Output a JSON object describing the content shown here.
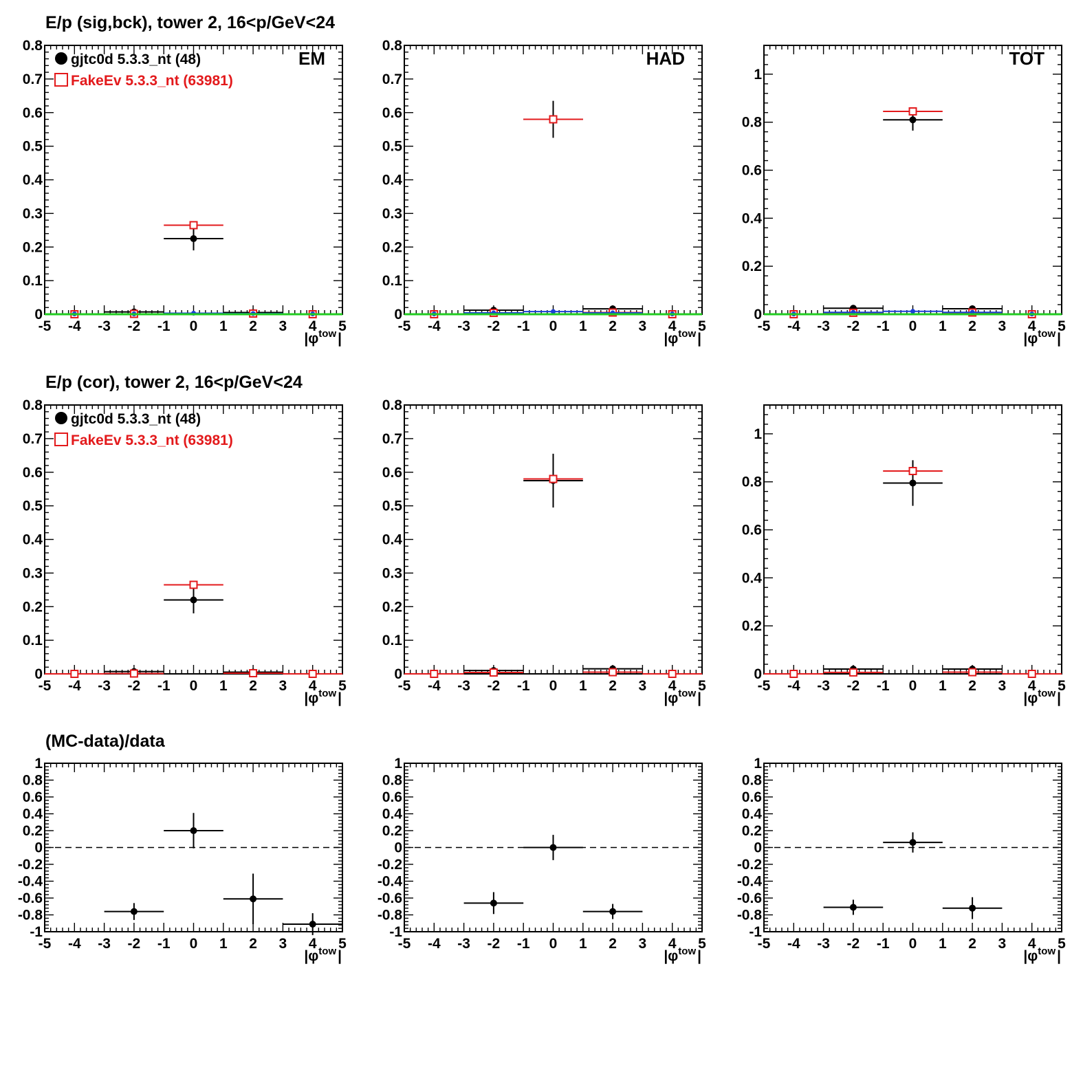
{
  "rows": [
    {
      "title": "E/p (sig,bck), tower 2, 16<p/GeV<24"
    },
    {
      "title": "E/p (cor), tower 2, 16<p/GeV<24"
    },
    {
      "title": "(MC-data)/data"
    }
  ],
  "legend": {
    "data_label": "gjtc0d 5.3.3_nt (48)",
    "mc_label": "FakeEv 5.3.3_nt (63981)"
  },
  "colors": {
    "data": "#000000",
    "mc": "#e31a1c",
    "blue": "#1a3fd6",
    "green": "#22cc22",
    "axis": "#000000"
  },
  "x_axis": {
    "label": "|φ_tow|",
    "range": [
      -5,
      5
    ],
    "ticks": [
      -5,
      -4,
      -3,
      -2,
      -1,
      0,
      1,
      2,
      3,
      4,
      5
    ],
    "tick_labels": [
      "-5",
      "-4",
      "-3",
      "-2",
      "-1",
      "0",
      "1",
      "2",
      "3",
      "4",
      "5"
    ]
  },
  "chart_data": [
    {
      "type": "scatter",
      "row": 0,
      "col": 0,
      "corner_label": "EM",
      "legend": true,
      "ylim": [
        0,
        0.8
      ],
      "yticks": [
        0,
        0.1,
        0.2,
        0.3,
        0.4,
        0.5,
        0.6,
        0.7,
        0.8
      ],
      "ytick_labels": [
        "0",
        "0.1",
        "0.2",
        "0.3",
        "0.4",
        "0.5",
        "0.6",
        "0.7",
        "0.8"
      ],
      "series": [
        {
          "name": "gjtc0d 5.3.3_nt (48)",
          "color": "#000000",
          "marker": "dot",
          "points": [
            {
              "x": -4,
              "y": 0,
              "err": 0
            },
            {
              "x": -2,
              "y": 0.007,
              "err": 0.003
            },
            {
              "x": 0,
              "y": 0.225,
              "err": 0.035
            },
            {
              "x": 2,
              "y": 0.005,
              "err": 0.003
            },
            {
              "x": 4,
              "y": 0,
              "err": 0
            }
          ]
        },
        {
          "name": "FakeEv 5.3.3_nt (63981)",
          "color": "#e31a1c",
          "marker": "open-square",
          "points": [
            {
              "x": -4,
              "y": 0,
              "err": 0
            },
            {
              "x": -2,
              "y": 0.001,
              "err": 0
            },
            {
              "x": 0,
              "y": 0.265,
              "err": 0
            },
            {
              "x": 2,
              "y": 0.002,
              "err": 0
            },
            {
              "x": 4,
              "y": 0,
              "err": 0
            }
          ]
        },
        {
          "color": "#1a3fd6",
          "marker": "small-dot",
          "points": [
            {
              "x": -4,
              "y": 0.001
            },
            {
              "x": -2,
              "y": 0.001
            },
            {
              "x": 0,
              "y": 0.003
            },
            {
              "x": 2,
              "y": 0.002
            },
            {
              "x": 4,
              "y": 0.001
            }
          ]
        },
        {
          "color": "#22cc22",
          "marker": "line",
          "points": [
            {
              "x": -4,
              "y": 0
            },
            {
              "x": -2,
              "y": 0
            },
            {
              "x": 0,
              "y": 0
            },
            {
              "x": 2,
              "y": 0
            },
            {
              "x": 4,
              "y": 0
            }
          ]
        }
      ]
    },
    {
      "type": "scatter",
      "row": 0,
      "col": 1,
      "corner_label": "HAD",
      "legend": false,
      "ylim": [
        0,
        0.8
      ],
      "yticks": [
        0,
        0.1,
        0.2,
        0.3,
        0.4,
        0.5,
        0.6,
        0.7,
        0.8
      ],
      "ytick_labels": [
        "0",
        "0.1",
        "0.2",
        "0.3",
        "0.4",
        "0.5",
        "0.6",
        "0.7",
        "0.8"
      ],
      "series": [
        {
          "name": "gjtc0d 5.3.3_nt (48)",
          "color": "#000000",
          "marker": "dot",
          "points": [
            {
              "x": -4,
              "y": 0,
              "err": 0
            },
            {
              "x": -2,
              "y": 0.012,
              "err": 0.004
            },
            {
              "x": 0,
              "y": 0.58,
              "err": 0.055
            },
            {
              "x": 2,
              "y": 0.016,
              "err": 0.004
            },
            {
              "x": 4,
              "y": 0,
              "err": 0
            }
          ]
        },
        {
          "name": "FakeEv 5.3.3_nt (63981)",
          "color": "#e31a1c",
          "marker": "open-square",
          "points": [
            {
              "x": -4,
              "y": 0,
              "err": 0
            },
            {
              "x": -2,
              "y": 0.004,
              "err": 0
            },
            {
              "x": 0,
              "y": 0.58,
              "err": 0
            },
            {
              "x": 2,
              "y": 0.005,
              "err": 0
            },
            {
              "x": 4,
              "y": 0,
              "err": 0
            }
          ]
        },
        {
          "color": "#1a3fd6",
          "marker": "small-dot",
          "points": [
            {
              "x": -4,
              "y": 0.001
            },
            {
              "x": -2,
              "y": 0.004
            },
            {
              "x": 0,
              "y": 0.008
            },
            {
              "x": 2,
              "y": 0.004
            },
            {
              "x": 4,
              "y": 0.001
            }
          ]
        },
        {
          "color": "#22cc22",
          "marker": "line",
          "points": [
            {
              "x": -4,
              "y": 0
            },
            {
              "x": -2,
              "y": 0
            },
            {
              "x": 0,
              "y": 0
            },
            {
              "x": 2,
              "y": 0
            },
            {
              "x": 4,
              "y": 0
            }
          ]
        }
      ]
    },
    {
      "type": "scatter",
      "row": 0,
      "col": 2,
      "corner_label": "TOT",
      "legend": false,
      "ylim": [
        0,
        1.12
      ],
      "yticks": [
        0,
        0.2,
        0.4,
        0.6,
        0.8,
        1
      ],
      "ytick_labels": [
        "0",
        "0.2",
        "0.4",
        "0.6",
        "0.8",
        "1"
      ],
      "series": [
        {
          "name": "gjtc0d 5.3.3_nt (48)",
          "color": "#000000",
          "marker": "dot",
          "points": [
            {
              "x": -4,
              "y": 0,
              "err": 0
            },
            {
              "x": -2,
              "y": 0.025,
              "err": 0.005
            },
            {
              "x": 0,
              "y": 0.81,
              "err": 0.045
            },
            {
              "x": 2,
              "y": 0.023,
              "err": 0.005
            },
            {
              "x": 4,
              "y": 0,
              "err": 0
            }
          ]
        },
        {
          "name": "FakeEv 5.3.3_nt (63981)",
          "color": "#e31a1c",
          "marker": "open-square",
          "points": [
            {
              "x": -4,
              "y": 0,
              "err": 0
            },
            {
              "x": -2,
              "y": 0.006,
              "err": 0
            },
            {
              "x": 0,
              "y": 0.845,
              "err": 0
            },
            {
              "x": 2,
              "y": 0.007,
              "err": 0
            },
            {
              "x": 4,
              "y": 0,
              "err": 0
            }
          ]
        },
        {
          "color": "#1a3fd6",
          "marker": "small-dot",
          "points": [
            {
              "x": -4,
              "y": 0.001
            },
            {
              "x": -2,
              "y": 0.008
            },
            {
              "x": 0,
              "y": 0.012
            },
            {
              "x": 2,
              "y": 0.008
            },
            {
              "x": 4,
              "y": 0.001
            }
          ]
        },
        {
          "color": "#22cc22",
          "marker": "line",
          "points": [
            {
              "x": -4,
              "y": 0
            },
            {
              "x": -2,
              "y": 0
            },
            {
              "x": 0,
              "y": 0
            },
            {
              "x": 2,
              "y": 0
            },
            {
              "x": 4,
              "y": 0
            }
          ]
        }
      ]
    },
    {
      "type": "scatter",
      "row": 1,
      "col": 0,
      "corner_label": "",
      "legend": true,
      "ylim": [
        0,
        0.8
      ],
      "yticks": [
        0,
        0.1,
        0.2,
        0.3,
        0.4,
        0.5,
        0.6,
        0.7,
        0.8
      ],
      "ytick_labels": [
        "0",
        "0.1",
        "0.2",
        "0.3",
        "0.4",
        "0.5",
        "0.6",
        "0.7",
        "0.8"
      ],
      "series": [
        {
          "name": "gjtc0d 5.3.3_nt (48)",
          "color": "#000000",
          "marker": "dot",
          "points": [
            {
              "x": -4,
              "y": 0,
              "err": 0
            },
            {
              "x": -2,
              "y": 0.007,
              "err": 0.003
            },
            {
              "x": 0,
              "y": 0.22,
              "err": 0.04
            },
            {
              "x": 2,
              "y": 0.005,
              "err": 0.003
            },
            {
              "x": 4,
              "y": 0,
              "err": 0
            }
          ]
        },
        {
          "name": "FakeEv 5.3.3_nt (63981)",
          "color": "#e31a1c",
          "marker": "open-square",
          "points": [
            {
              "x": -4,
              "y": 0,
              "err": 0
            },
            {
              "x": -2,
              "y": 0.001,
              "err": 0
            },
            {
              "x": 0,
              "y": 0.265,
              "err": 0
            },
            {
              "x": 2,
              "y": 0.002,
              "err": 0
            },
            {
              "x": 4,
              "y": 0,
              "err": 0
            }
          ]
        }
      ]
    },
    {
      "type": "scatter",
      "row": 1,
      "col": 1,
      "corner_label": "",
      "legend": false,
      "ylim": [
        0,
        0.8
      ],
      "yticks": [
        0,
        0.1,
        0.2,
        0.3,
        0.4,
        0.5,
        0.6,
        0.7,
        0.8
      ],
      "ytick_labels": [
        "0",
        "0.1",
        "0.2",
        "0.3",
        "0.4",
        "0.5",
        "0.6",
        "0.7",
        "0.8"
      ],
      "series": [
        {
          "name": "gjtc0d 5.3.3_nt (48)",
          "color": "#000000",
          "marker": "dot",
          "points": [
            {
              "x": -4,
              "y": 0,
              "err": 0
            },
            {
              "x": -2,
              "y": 0.01,
              "err": 0.004
            },
            {
              "x": 0,
              "y": 0.575,
              "err": 0.08
            },
            {
              "x": 2,
              "y": 0.015,
              "err": 0.004
            },
            {
              "x": 4,
              "y": 0,
              "err": 0
            }
          ]
        },
        {
          "name": "FakeEv 5.3.3_nt (63981)",
          "color": "#e31a1c",
          "marker": "open-square",
          "points": [
            {
              "x": -4,
              "y": 0,
              "err": 0
            },
            {
              "x": -2,
              "y": 0.004,
              "err": 0
            },
            {
              "x": 0,
              "y": 0.58,
              "err": 0
            },
            {
              "x": 2,
              "y": 0.005,
              "err": 0
            },
            {
              "x": 4,
              "y": 0,
              "err": 0
            }
          ]
        }
      ]
    },
    {
      "type": "scatter",
      "row": 1,
      "col": 2,
      "corner_label": "",
      "legend": false,
      "ylim": [
        0,
        1.12
      ],
      "yticks": [
        0,
        0.2,
        0.4,
        0.6,
        0.8,
        1
      ],
      "ytick_labels": [
        "0",
        "0.2",
        "0.4",
        "0.6",
        "0.8",
        "1"
      ],
      "series": [
        {
          "name": "gjtc0d 5.3.3_nt (48)",
          "color": "#000000",
          "marker": "dot",
          "points": [
            {
              "x": -4,
              "y": 0,
              "err": 0
            },
            {
              "x": -2,
              "y": 0.02,
              "err": 0.006
            },
            {
              "x": 0,
              "y": 0.795,
              "err": 0.095
            },
            {
              "x": 2,
              "y": 0.02,
              "err": 0.006
            },
            {
              "x": 4,
              "y": 0,
              "err": 0
            }
          ]
        },
        {
          "name": "FakeEv 5.3.3_nt (63981)",
          "color": "#e31a1c",
          "marker": "open-square",
          "points": [
            {
              "x": -4,
              "y": 0,
              "err": 0
            },
            {
              "x": -2,
              "y": 0.006,
              "err": 0
            },
            {
              "x": 0,
              "y": 0.845,
              "err": 0
            },
            {
              "x": 2,
              "y": 0.007,
              "err": 0
            },
            {
              "x": 4,
              "y": 0,
              "err": 0
            }
          ]
        }
      ]
    },
    {
      "type": "scatter",
      "row": 2,
      "col": 0,
      "corner_label": "",
      "legend": false,
      "ratio": true,
      "ylim": [
        -1,
        1
      ],
      "yticks": [
        -1,
        -0.8,
        -0.6,
        -0.4,
        -0.2,
        0,
        0.2,
        0.4,
        0.6,
        0.8,
        1
      ],
      "ytick_labels": [
        "-1",
        "-0.8",
        "-0.6",
        "-0.4",
        "-0.2",
        "0",
        "0.2",
        "0.4",
        "0.6",
        "0.8",
        "1"
      ],
      "series": [
        {
          "color": "#000000",
          "marker": "dot",
          "points": [
            {
              "x": -2,
              "y": -0.76,
              "err": 0.1
            },
            {
              "x": 0,
              "y": 0.2,
              "err": 0.21
            },
            {
              "x": 2,
              "y": -0.61,
              "err": 0.3
            },
            {
              "x": 4,
              "y": -0.91,
              "err": 0.13
            }
          ]
        }
      ]
    },
    {
      "type": "scatter",
      "row": 2,
      "col": 1,
      "corner_label": "",
      "legend": false,
      "ratio": true,
      "ylim": [
        -1,
        1
      ],
      "yticks": [
        -1,
        -0.8,
        -0.6,
        -0.4,
        -0.2,
        0,
        0.2,
        0.4,
        0.6,
        0.8,
        1
      ],
      "ytick_labels": [
        "-1",
        "-0.8",
        "-0.6",
        "-0.4",
        "-0.2",
        "0",
        "0.2",
        "0.4",
        "0.6",
        "0.8",
        "1"
      ],
      "series": [
        {
          "color": "#000000",
          "marker": "dot",
          "points": [
            {
              "x": -2,
              "y": -0.66,
              "err": 0.13
            },
            {
              "x": 0,
              "y": 0.0,
              "err": 0.15
            },
            {
              "x": 2,
              "y": -0.76,
              "err": 0.09
            }
          ]
        }
      ]
    },
    {
      "type": "scatter",
      "row": 2,
      "col": 2,
      "corner_label": "",
      "legend": false,
      "ratio": true,
      "ylim": [
        -1,
        1
      ],
      "yticks": [
        -1,
        -0.8,
        -0.6,
        -0.4,
        -0.2,
        0,
        0.2,
        0.4,
        0.6,
        0.8,
        1
      ],
      "ytick_labels": [
        "-1",
        "-0.8",
        "-0.6",
        "-0.4",
        "-0.2",
        "0",
        "0.2",
        "0.4",
        "0.6",
        "0.8",
        "1"
      ],
      "series": [
        {
          "color": "#000000",
          "marker": "dot",
          "points": [
            {
              "x": -2,
              "y": -0.71,
              "err": 0.09
            },
            {
              "x": 0,
              "y": 0.06,
              "err": 0.12
            },
            {
              "x": 2,
              "y": -0.72,
              "err": 0.13
            }
          ]
        }
      ]
    }
  ]
}
